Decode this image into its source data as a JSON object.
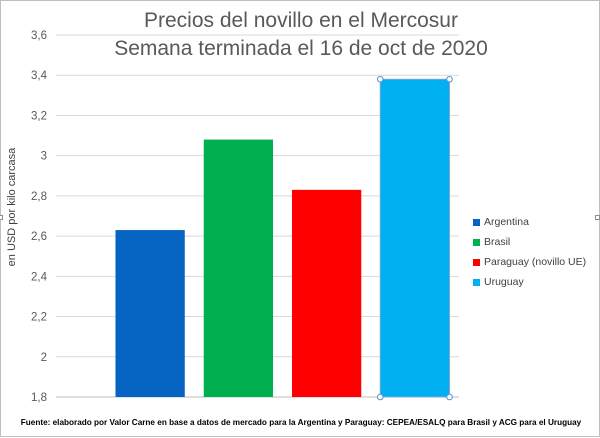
{
  "chart_data": {
    "type": "bar",
    "title": "Precios del novillo en el Mercosur",
    "subtitle": "Semana terminada el 16 de oct de 2020",
    "ylabel": "en USD por kilo carcasa",
    "xlabel": "",
    "ylim": [
      1.8,
      3.6
    ],
    "yticks": [
      "1,8",
      "2",
      "2,2",
      "2,4",
      "2,6",
      "2,8",
      "3",
      "3,2",
      "3,4",
      "3,6"
    ],
    "categories": [
      "Argentina",
      "Brasil",
      "Paraguay (novillo UE)",
      "Uruguay"
    ],
    "values": [
      2.63,
      3.08,
      2.83,
      3.38
    ],
    "colors": [
      "#0563c1",
      "#00b050",
      "#ff0000",
      "#00b0f0"
    ],
    "grid": true,
    "legend_position": "right",
    "selected_series_index": 3
  },
  "footer": {
    "source": "Fuente: elaborado por Valor Carne en base a datos de mercado para la Argentina y Paraguay: CEPEA/ESALQ para Brasil y ACG para el Uruguay"
  },
  "legend": {
    "items": [
      {
        "label": "Argentina",
        "color": "#0563c1"
      },
      {
        "label": "Brasil",
        "color": "#00b050"
      },
      {
        "label": "Paraguay (novillo UE)",
        "color": "#ff0000"
      },
      {
        "label": "Uruguay",
        "color": "#00b0f0"
      }
    ]
  }
}
